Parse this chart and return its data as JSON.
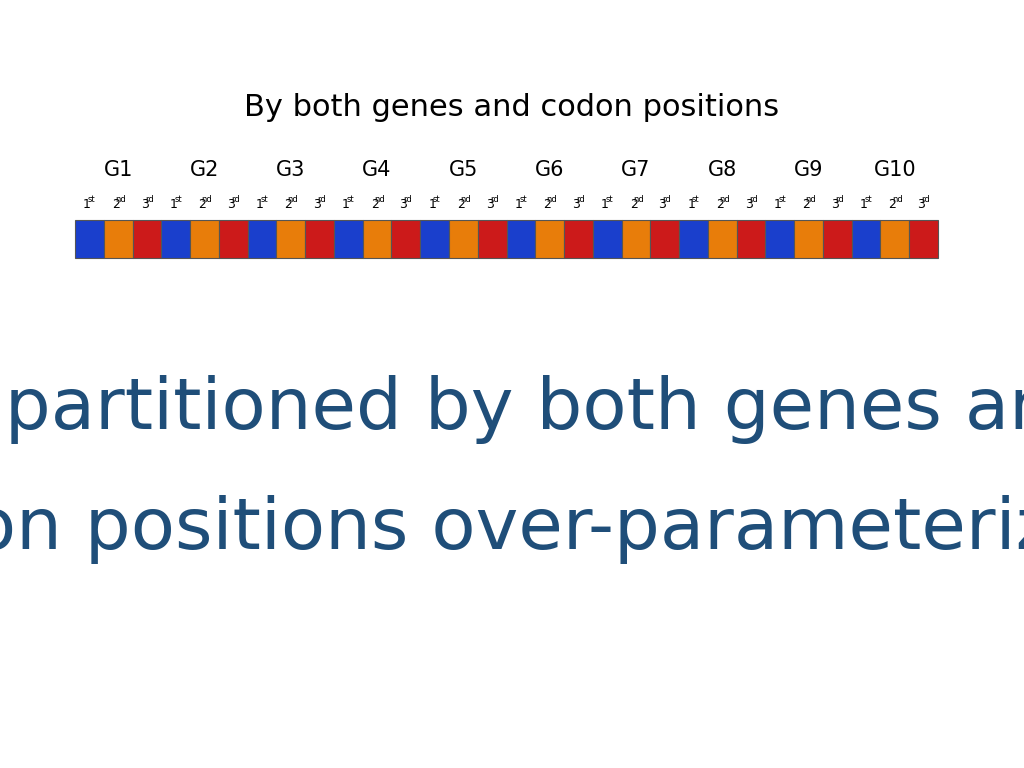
{
  "title": "By both genes and codon positions",
  "subtitle_line1": "Is partitioned by both genes and",
  "subtitle_line2": "codon positions over-parameterized?",
  "subtitle_color": "#1F4E79",
  "title_color": "#000000",
  "background_color": "#FFFFFF",
  "num_genes": 10,
  "gene_labels": [
    "G1",
    "G2",
    "G3",
    "G4",
    "G5",
    "G6",
    "G7",
    "G8",
    "G9",
    "G10"
  ],
  "codon_colors": [
    "#1A3FCC",
    "#E87D0A",
    "#CC1A1A"
  ],
  "block_colors": [
    [
      "#1A3FCC",
      "#E87D0A",
      "#CC1A1A"
    ],
    [
      "#1A3FCC",
      "#E87D0A",
      "#CC1A1A"
    ],
    [
      "#1A3FCC",
      "#E87D0A",
      "#CC1A1A"
    ],
    [
      "#1A3FCC",
      "#E87D0A",
      "#CC1A1A"
    ],
    [
      "#1A3FCC",
      "#E87D0A",
      "#CC1A1A"
    ],
    [
      "#1A3FCC",
      "#E87D0A",
      "#CC1A1A"
    ],
    [
      "#1A3FCC",
      "#E87D0A",
      "#CC1A1A"
    ],
    [
      "#1A3FCC",
      "#E87D0A",
      "#CC1A1A"
    ],
    [
      "#1A3FCC",
      "#E87D0A",
      "#CC1A1A"
    ],
    [
      "#1A3FCC",
      "#E87D0A",
      "#CC1A1A"
    ]
  ],
  "title_fontsize": 22,
  "gene_label_fontsize": 15,
  "codon_label_fontsize": 9,
  "superscript_fontsize": 6,
  "subtitle_fontsize": 52,
  "fig_width": 10.24,
  "fig_height": 7.68,
  "dpi": 100
}
